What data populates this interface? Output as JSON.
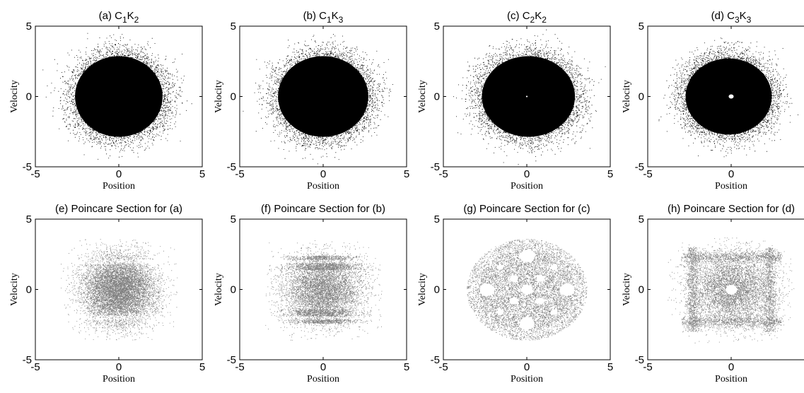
{
  "chart_data": [
    {
      "id": "a",
      "type": "scatter",
      "title": "(a) C1K2",
      "title_parts": [
        {
          "t": "(a) C"
        },
        {
          "t": "1",
          "sub": true
        },
        {
          "t": "K"
        },
        {
          "t": "2",
          "sub": true
        }
      ],
      "xlabel": "Position",
      "ylabel": "Velocity",
      "xlim": [
        -5,
        5
      ],
      "ylim": [
        -5,
        5
      ],
      "xticks": [
        -5,
        0,
        5
      ],
      "yticks": [
        -5,
        0,
        5
      ],
      "marker_color": "#000000",
      "pattern": "solid-ellipse",
      "distribution": {
        "x_sigma": 1.1,
        "y_sigma": 1.05,
        "x_range": [
          -3.2,
          3.2
        ],
        "y_range": [
          -3.5,
          3.5
        ]
      },
      "hole_radius": 0,
      "grid": false,
      "legend": "none"
    },
    {
      "id": "b",
      "type": "scatter",
      "title": "(b) C1K3",
      "title_parts": [
        {
          "t": "(b) C"
        },
        {
          "t": "1",
          "sub": true
        },
        {
          "t": "K"
        },
        {
          "t": "3",
          "sub": true
        }
      ],
      "xlabel": "Position",
      "ylabel": "Velocity",
      "xlim": [
        -5,
        5
      ],
      "ylim": [
        -5,
        5
      ],
      "xticks": [
        -5,
        0,
        5
      ],
      "yticks": [
        -5,
        0,
        5
      ],
      "marker_color": "#000000",
      "pattern": "solid-ellipse",
      "distribution": {
        "x_sigma": 1.15,
        "y_sigma": 1.0,
        "x_range": [
          -3.3,
          3.3
        ],
        "y_range": [
          -3.5,
          3.5
        ]
      },
      "hole_radius": 0,
      "grid": false,
      "legend": "none"
    },
    {
      "id": "c",
      "type": "scatter",
      "title": "(c) C2K2",
      "title_parts": [
        {
          "t": "(c) C"
        },
        {
          "t": "2",
          "sub": true
        },
        {
          "t": "K"
        },
        {
          "t": "2",
          "sub": true
        }
      ],
      "xlabel": "Position",
      "ylabel": "Velocity",
      "xlim": [
        -5,
        5
      ],
      "ylim": [
        -5,
        5
      ],
      "xticks": [
        -5,
        0,
        5
      ],
      "yticks": [
        -5,
        0,
        5
      ],
      "marker_color": "#000000",
      "pattern": "solid-ellipse",
      "distribution": {
        "x_sigma": 1.15,
        "y_sigma": 1.05,
        "x_range": [
          -3.3,
          3.5
        ],
        "y_range": [
          -3.5,
          3.5
        ]
      },
      "hole_radius": 0.05,
      "grid": false,
      "legend": "none"
    },
    {
      "id": "d",
      "type": "scatter",
      "title": "(d) C3K3",
      "title_parts": [
        {
          "t": "(d) C"
        },
        {
          "t": "3",
          "sub": true
        },
        {
          "t": "K"
        },
        {
          "t": "3",
          "sub": true
        }
      ],
      "xlabel": "Position",
      "ylabel": "Velocity",
      "xlim": [
        -5,
        5
      ],
      "ylim": [
        -5,
        5
      ],
      "xticks": [
        -5,
        0,
        5
      ],
      "yticks": [
        -5,
        0,
        5
      ],
      "marker_color": "#000000",
      "pattern": "solid-ellipse",
      "distribution": {
        "x_sigma": 1.05,
        "y_sigma": 1.0,
        "x_range": [
          -3.3,
          3.0
        ],
        "y_range": [
          -3.3,
          3.3
        ]
      },
      "hole_radius": 0.15,
      "grid": false,
      "legend": "none"
    },
    {
      "id": "e",
      "type": "scatter",
      "title": "(e) Poincare Section for (a)",
      "title_parts": [
        {
          "t": "(e) Poincare Section for (a)"
        }
      ],
      "xlabel": "Position",
      "ylabel": "Velocity",
      "xlim": [
        -5,
        5
      ],
      "ylim": [
        -5,
        5
      ],
      "xticks": [
        -5,
        0,
        5
      ],
      "yticks": [
        -5,
        0,
        5
      ],
      "marker_color": "#808080",
      "pattern": "poincare-diffuse",
      "distribution": {
        "x_range": [
          -3.5,
          3.5
        ],
        "y_range": [
          -3.6,
          3.6
        ]
      },
      "bands_y": [
        -2.0,
        2.0
      ],
      "grid": false,
      "legend": "none"
    },
    {
      "id": "f",
      "type": "scatter",
      "title": "(f) Poincare Section for (b)",
      "title_parts": [
        {
          "t": "(f) Poincare Section for (b)"
        }
      ],
      "xlabel": "Position",
      "ylabel": "Velocity",
      "xlim": [
        -5,
        5
      ],
      "ylim": [
        -5,
        5
      ],
      "xticks": [
        -5,
        0,
        5
      ],
      "yticks": [
        -5,
        0,
        5
      ],
      "marker_color": "#808080",
      "pattern": "poincare-horizontal-bands",
      "distribution": {
        "x_range": [
          -3.5,
          3.5
        ],
        "y_range": [
          -3.6,
          3.6
        ]
      },
      "bands_y": [
        -2.4,
        -1.4,
        1.4,
        2.4
      ],
      "grid": false,
      "legend": "none"
    },
    {
      "id": "g",
      "type": "scatter",
      "title": "(g) Poincare Section for (c)",
      "title_parts": [
        {
          "t": "(g) Poincare Section for (c)"
        }
      ],
      "xlabel": "Position",
      "ylabel": "Velocity",
      "xlim": [
        -5,
        5
      ],
      "ylim": [
        -5,
        5
      ],
      "xticks": [
        -5,
        0,
        5
      ],
      "yticks": [
        -5,
        0,
        5
      ],
      "marker_color": "#808080",
      "pattern": "poincare-islands",
      "distribution": {
        "x_range": [
          -3.8,
          3.8
        ],
        "y_range": [
          -3.8,
          3.8
        ]
      },
      "holes": [
        [
          0,
          2.4,
          0.45
        ],
        [
          0,
          -2.4,
          0.45
        ],
        [
          2.4,
          0,
          0.45
        ],
        [
          -2.4,
          0,
          0.45
        ],
        [
          0,
          0,
          0.35
        ],
        [
          0.8,
          0.8,
          0.25
        ],
        [
          -0.8,
          0.8,
          0.25
        ],
        [
          0.8,
          -0.8,
          0.25
        ],
        [
          -0.8,
          -0.8,
          0.25
        ],
        [
          1.6,
          1.6,
          0.2
        ],
        [
          -1.6,
          1.6,
          0.2
        ],
        [
          1.6,
          -1.6,
          0.2
        ],
        [
          -1.6,
          -1.6,
          0.2
        ]
      ],
      "grid": false,
      "legend": "none"
    },
    {
      "id": "h",
      "type": "scatter",
      "title": "(h) Poincare Section for (d)",
      "title_parts": [
        {
          "t": "(h) Poincare Section for (d)"
        }
      ],
      "xlabel": "Position",
      "ylabel": "Velocity",
      "xlim": [
        -5,
        5
      ],
      "ylim": [
        -5,
        5
      ],
      "xticks": [
        -5,
        0,
        5
      ],
      "yticks": [
        -5,
        0,
        5
      ],
      "marker_color": "#808080",
      "pattern": "poincare-square",
      "distribution": {
        "x_range": [
          -3.8,
          3.8
        ],
        "y_range": [
          -3.8,
          3.8
        ]
      },
      "square_edge": 2.3,
      "holes": [
        [
          0,
          0,
          0.35
        ]
      ],
      "grid": false,
      "legend": "none"
    }
  ]
}
